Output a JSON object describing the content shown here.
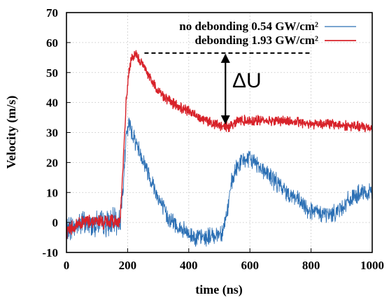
{
  "chart_data": {
    "type": "line",
    "xlabel": "time (ns)",
    "ylabel": "Velocity (m/s)",
    "xlim": [
      0,
      1000
    ],
    "ylim": [
      -10,
      70
    ],
    "x_ticks": [
      "0",
      "200",
      "400",
      "600",
      "800",
      "1000"
    ],
    "y_ticks": [
      "-10",
      "0",
      "10",
      "20",
      "30",
      "40",
      "50",
      "60",
      "70"
    ],
    "grid": true,
    "legend_position": "top-right",
    "series": [
      {
        "name": "no debonding 0.54 GW/cm²",
        "color": "#2b6fb4",
        "x": [
          0,
          10,
          30,
          50,
          70,
          100,
          130,
          160,
          175,
          185,
          195,
          205,
          215,
          230,
          250,
          270,
          290,
          310,
          330,
          350,
          370,
          400,
          430,
          460,
          490,
          510,
          525,
          540,
          560,
          580,
          600,
          620,
          640,
          660,
          680,
          700,
          720,
          740,
          760,
          780,
          800,
          820,
          840,
          860,
          880,
          900,
          920,
          940,
          960,
          980,
          1000
        ],
        "y": [
          -3,
          -2,
          -1,
          0,
          -1,
          0,
          -0.5,
          0.5,
          0,
          12,
          28,
          33,
          30,
          26,
          21,
          16,
          11,
          6,
          2,
          0,
          -2,
          -4,
          -5,
          -5,
          -4,
          -3,
          3,
          13,
          19,
          21,
          21,
          20,
          18,
          16,
          14,
          12,
          10,
          9,
          7,
          5,
          4,
          3,
          3,
          2.5,
          3.5,
          5,
          7,
          8.5,
          9.5,
          9.5,
          9.5
        ]
      },
      {
        "name": "debonding 1.93 GW/cm²",
        "color": "#d8222a",
        "x": [
          0,
          10,
          30,
          50,
          70,
          100,
          130,
          160,
          175,
          185,
          195,
          205,
          215,
          225,
          240,
          260,
          280,
          300,
          330,
          360,
          400,
          440,
          480,
          510,
          530,
          545,
          560,
          580,
          600,
          650,
          700,
          750,
          800,
          850,
          900,
          950,
          1000
        ],
        "y": [
          -3,
          -2,
          -1,
          0,
          0.5,
          0.5,
          0,
          0.5,
          0.5,
          18,
          40,
          51,
          55,
          56,
          54,
          51,
          47,
          44,
          41,
          39,
          37,
          35,
          33,
          32,
          32,
          33,
          34,
          34,
          34,
          34,
          34,
          33.5,
          33,
          33,
          32.5,
          32,
          31.5
        ]
      }
    ],
    "annotations": [
      {
        "label": "ΔU",
        "type": "double-arrow",
        "x": 520,
        "y_from": 33,
        "y_to": 56
      }
    ],
    "reference_line": {
      "style": "dashed",
      "y": 56.5,
      "x_from": 255,
      "x_to": 795
    }
  }
}
